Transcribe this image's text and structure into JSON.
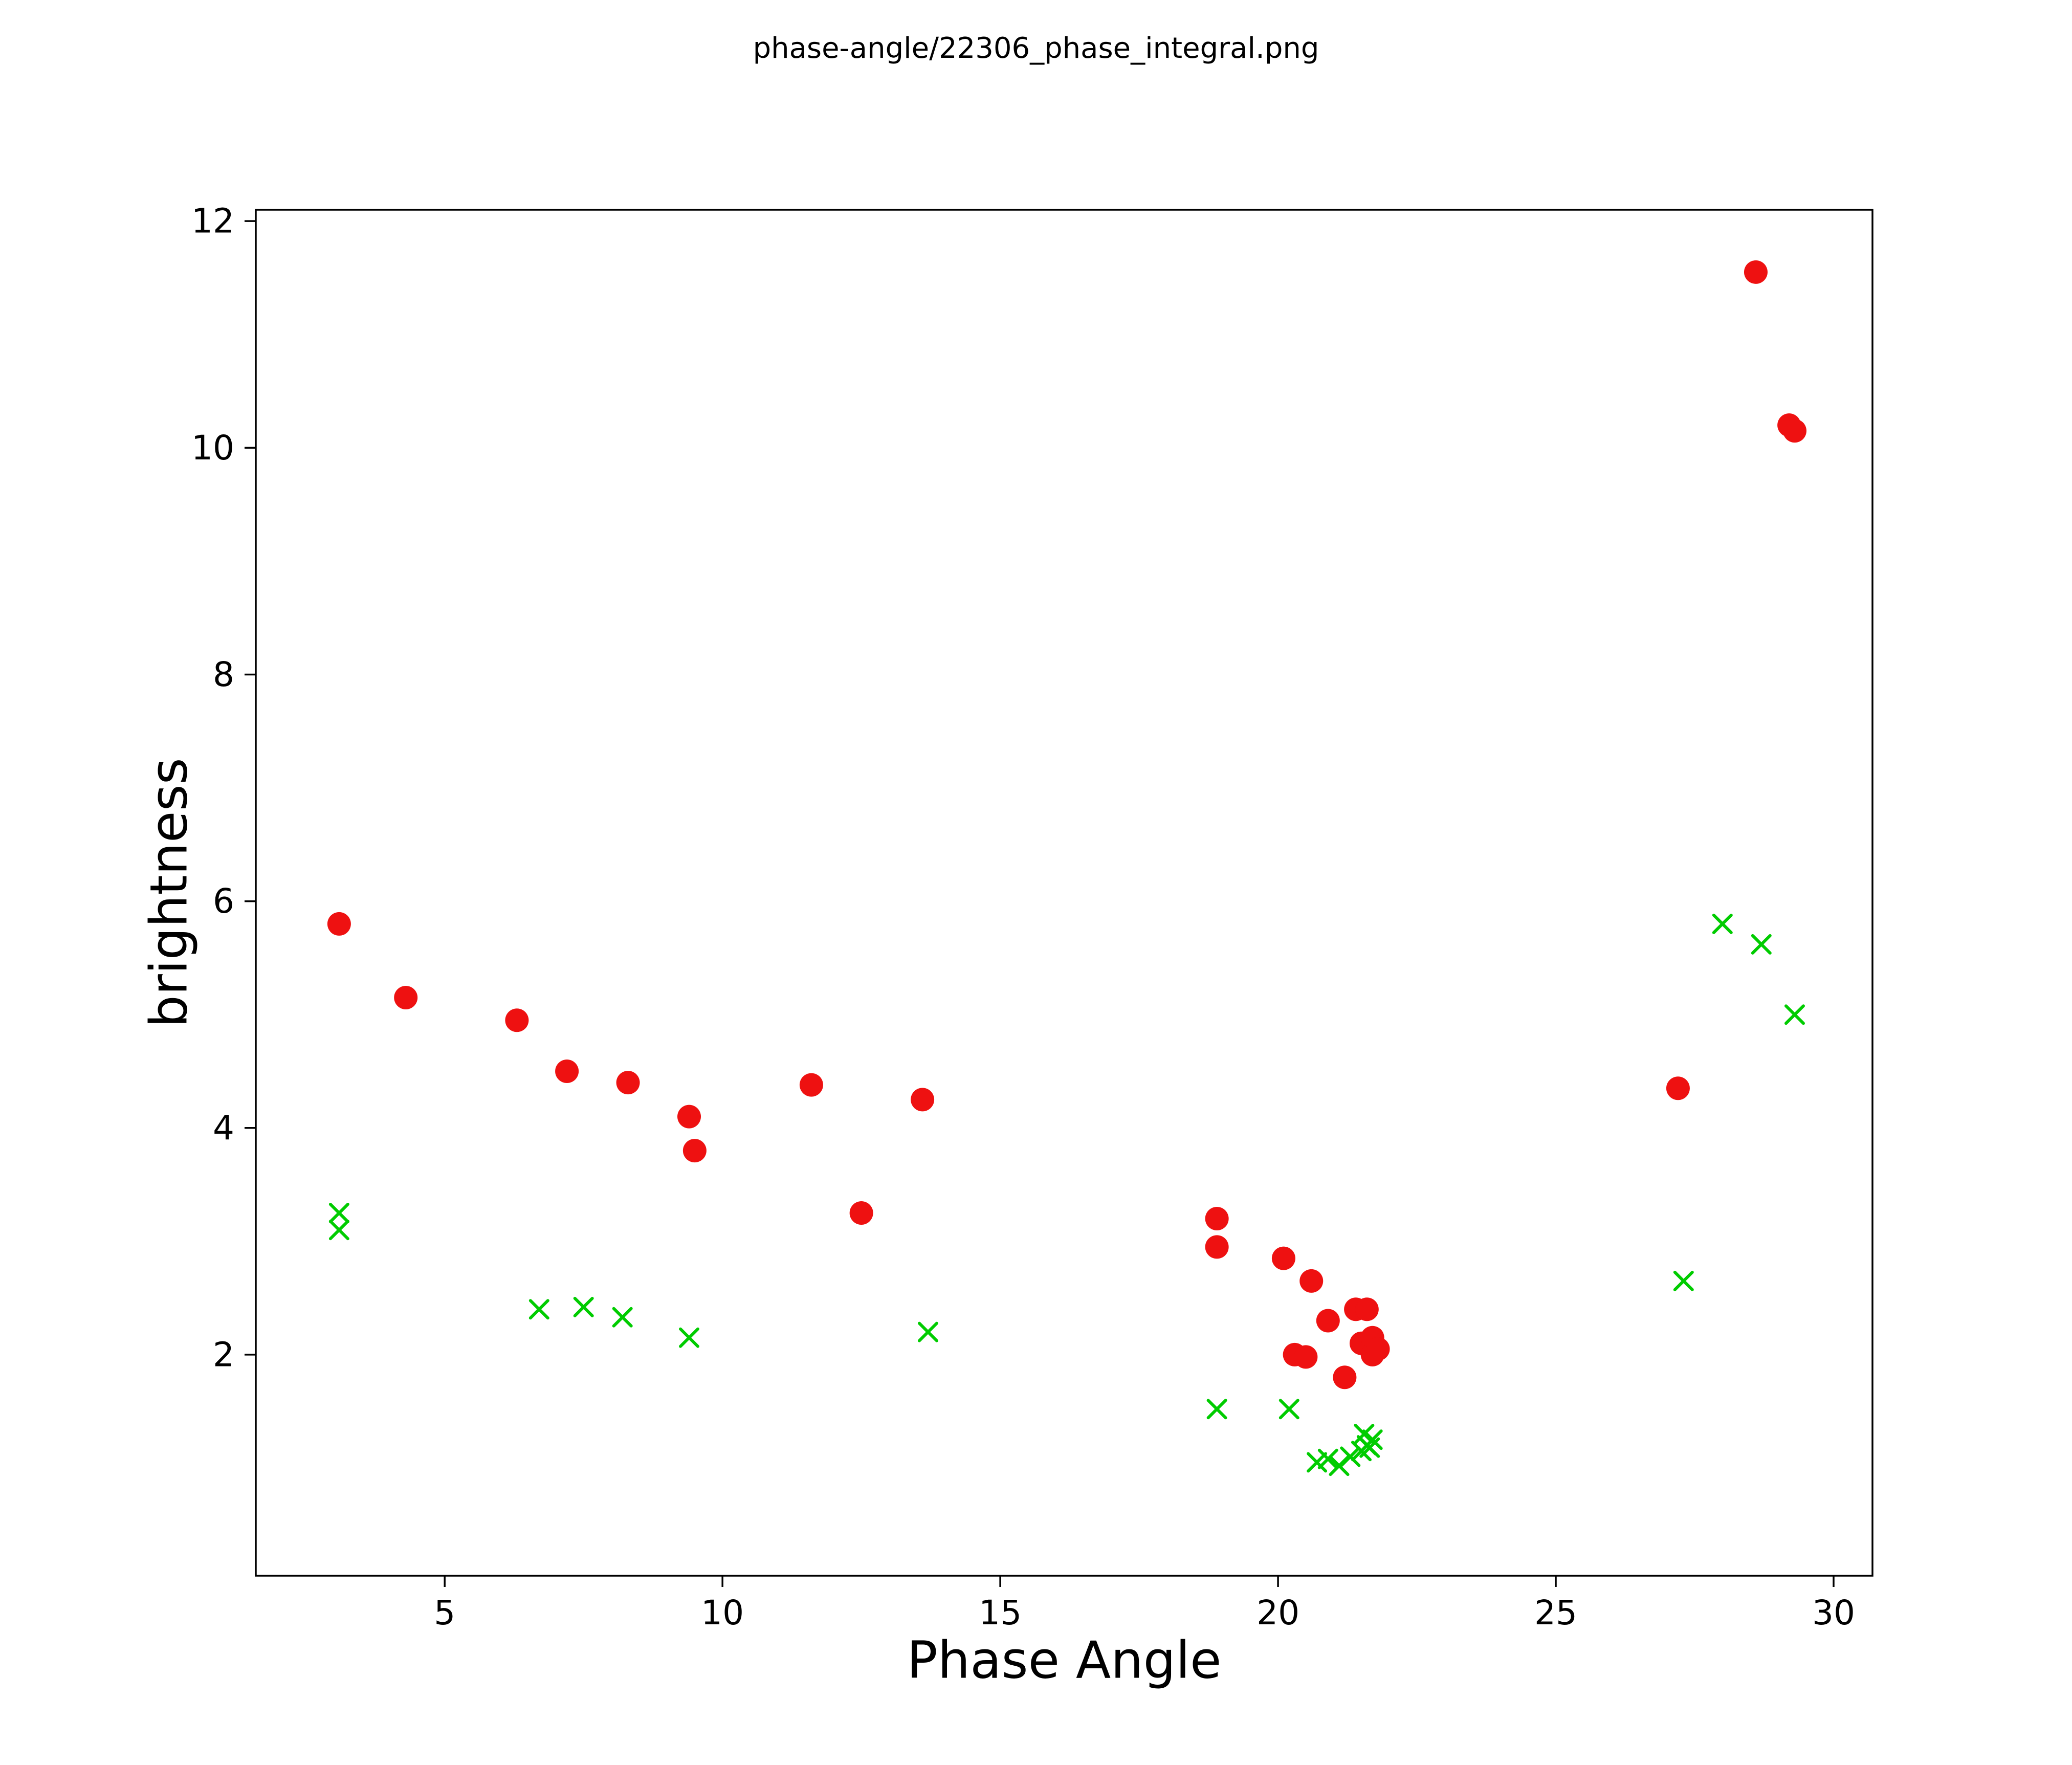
{
  "chart_data": {
    "type": "scatter",
    "title": "phase-angle/22306_phase_integral.png",
    "xlabel": "Phase Angle",
    "ylabel": "brightness",
    "xlim": [
      1.6,
      30.7
    ],
    "ylim": [
      0.05,
      12.1
    ],
    "xticks": [
      5,
      10,
      15,
      20,
      25,
      30
    ],
    "yticks": [
      2,
      4,
      6,
      8,
      10,
      12
    ],
    "grid": false,
    "legend": "none",
    "series": [
      {
        "name": "red-circles",
        "marker": "circle",
        "color": "#ee1111",
        "points": [
          [
            3.1,
            5.8
          ],
          [
            4.3,
            5.15
          ],
          [
            6.3,
            4.95
          ],
          [
            7.2,
            4.5
          ],
          [
            8.3,
            4.4
          ],
          [
            9.4,
            4.1
          ],
          [
            9.5,
            3.8
          ],
          [
            11.6,
            4.38
          ],
          [
            12.5,
            3.25
          ],
          [
            13.6,
            4.25
          ],
          [
            18.9,
            3.2
          ],
          [
            18.9,
            2.95
          ],
          [
            20.1,
            2.85
          ],
          [
            20.6,
            2.65
          ],
          [
            20.3,
            2.0
          ],
          [
            20.5,
            1.98
          ],
          [
            20.9,
            2.3
          ],
          [
            21.2,
            1.8
          ],
          [
            21.4,
            2.4
          ],
          [
            21.6,
            2.4
          ],
          [
            21.5,
            2.1
          ],
          [
            21.7,
            2.15
          ],
          [
            21.7,
            2.0
          ],
          [
            21.8,
            2.05
          ],
          [
            27.2,
            4.35
          ],
          [
            28.6,
            11.55
          ],
          [
            29.2,
            10.2
          ],
          [
            29.3,
            10.15
          ]
        ]
      },
      {
        "name": "green-crosses",
        "marker": "x",
        "color": "#00cc00",
        "points": [
          [
            3.1,
            3.25
          ],
          [
            3.1,
            3.1
          ],
          [
            6.7,
            2.4
          ],
          [
            7.5,
            2.42
          ],
          [
            8.2,
            2.33
          ],
          [
            9.4,
            2.15
          ],
          [
            13.7,
            2.2
          ],
          [
            18.9,
            1.52
          ],
          [
            20.2,
            1.52
          ],
          [
            20.7,
            1.05
          ],
          [
            20.9,
            1.08
          ],
          [
            21.1,
            1.02
          ],
          [
            21.3,
            1.1
          ],
          [
            21.5,
            1.15
          ],
          [
            21.55,
            1.3
          ],
          [
            21.6,
            1.2
          ],
          [
            21.65,
            1.18
          ],
          [
            21.7,
            1.25
          ],
          [
            27.3,
            2.65
          ],
          [
            28.0,
            5.8
          ],
          [
            28.7,
            5.62
          ],
          [
            29.3,
            5.0
          ]
        ]
      }
    ]
  }
}
